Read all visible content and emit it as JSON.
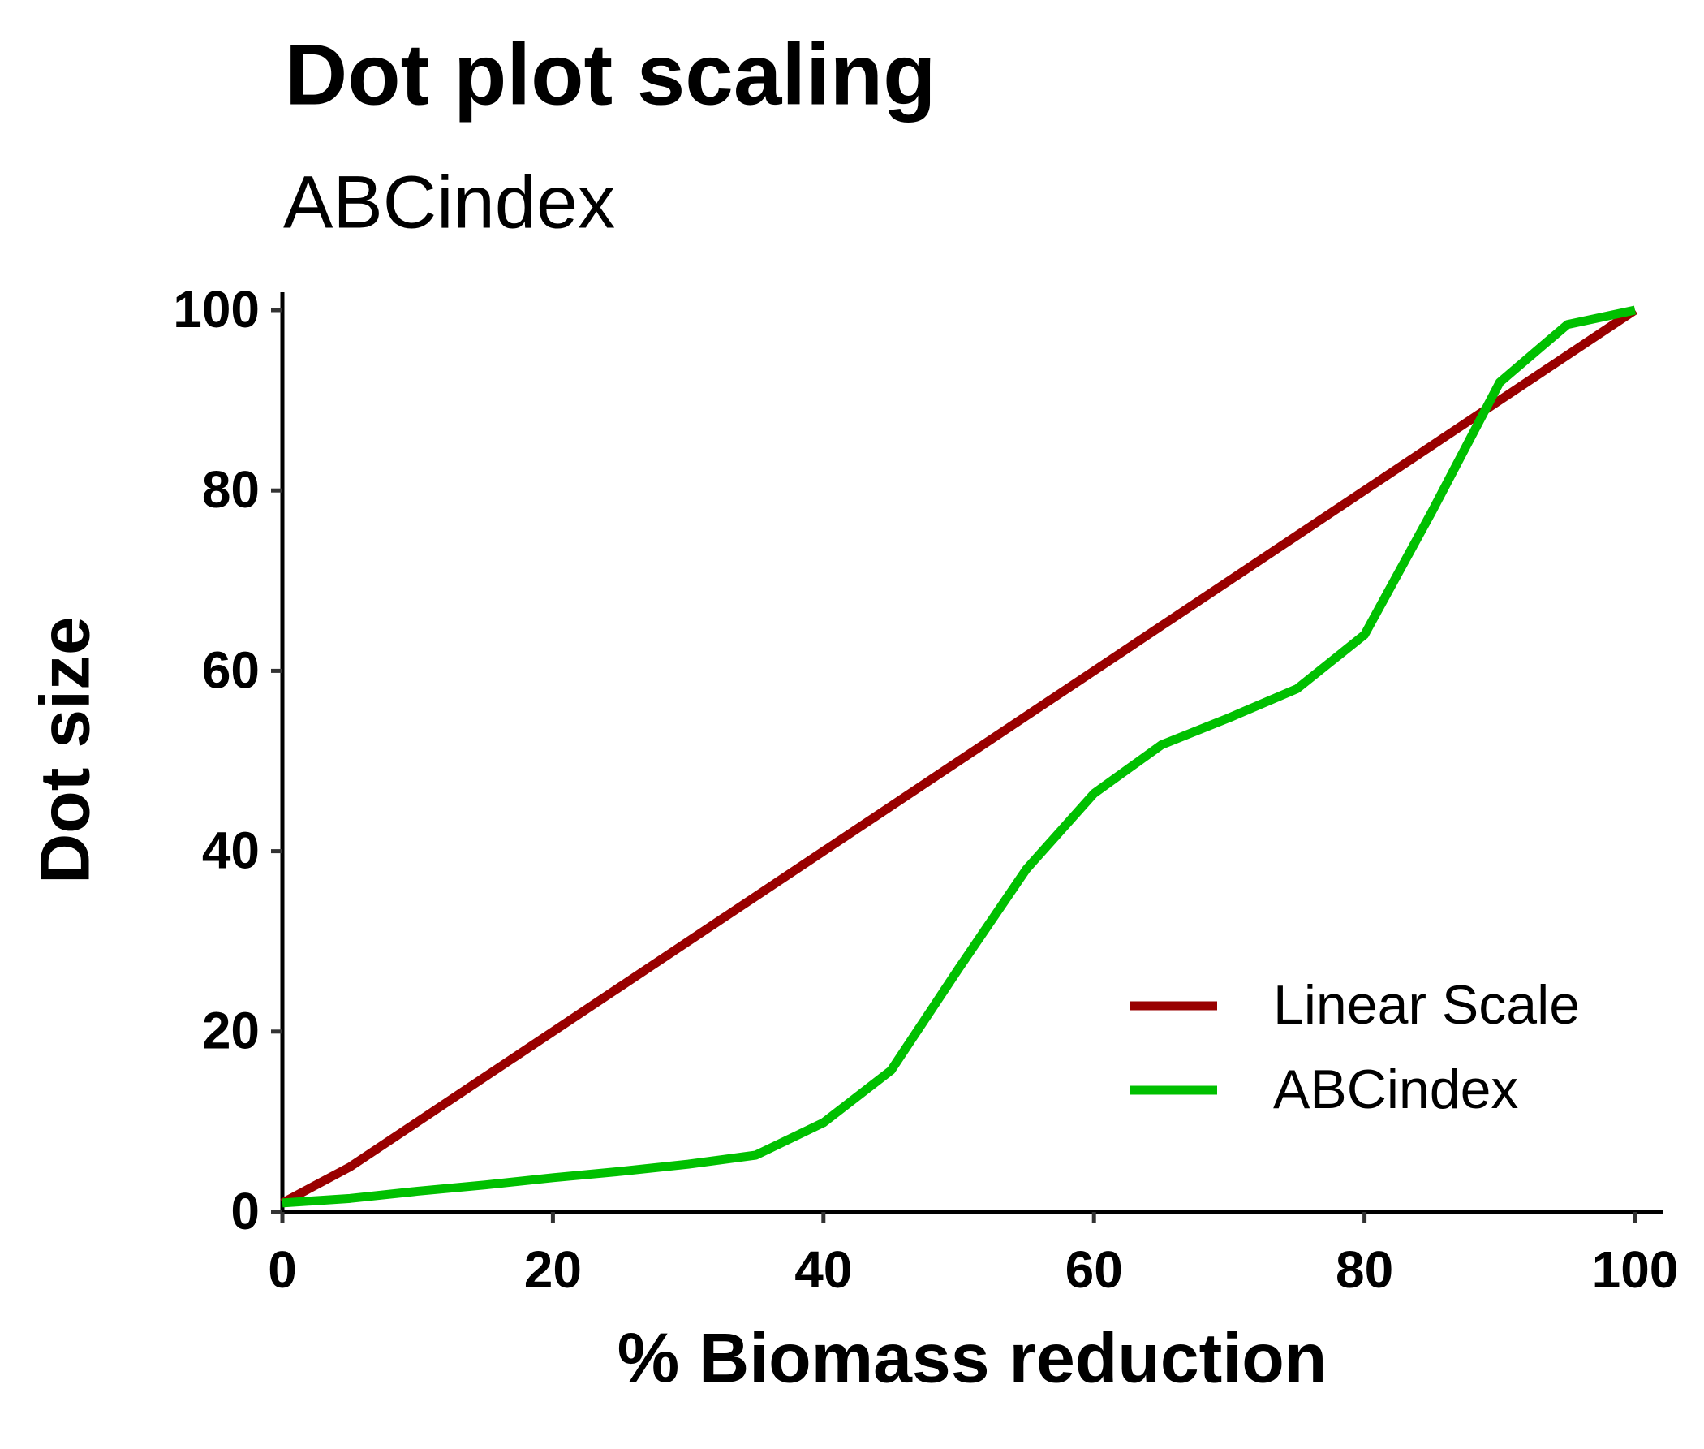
{
  "chart_data": {
    "type": "line",
    "title": "Dot plot scaling",
    "subtitle": "ABCindex",
    "x_label": "% Biomass reduction",
    "y_label": "Dot size",
    "x": [
      0,
      5,
      10,
      15,
      20,
      25,
      30,
      35,
      40,
      45,
      50,
      55,
      60,
      65,
      70,
      75,
      80,
      85,
      90,
      95,
      100
    ],
    "series": [
      {
        "name": "Linear Scale",
        "color": "#990000",
        "values": [
          1,
          5,
          10,
          15,
          20,
          25,
          30,
          35,
          40,
          45,
          50,
          55,
          60,
          65,
          70,
          75,
          80,
          85,
          90,
          95,
          100
        ]
      },
      {
        "name": "ABCindex",
        "color": "#00c000",
        "values": [
          1,
          1.5,
          2.3,
          3,
          3.8,
          4.5,
          5.3,
          6.3,
          9.9,
          15.7,
          27,
          38,
          46.4,
          51.8,
          54.8,
          58,
          64,
          77.7,
          92,
          98.4,
          100
        ]
      }
    ],
    "xlim": [
      0,
      100
    ],
    "ylim": [
      0,
      100
    ],
    "xticks": [
      0,
      20,
      40,
      60,
      80,
      100
    ],
    "yticks": [
      0,
      20,
      40,
      60,
      80,
      100
    ],
    "grid": false,
    "legend": "lower right"
  }
}
